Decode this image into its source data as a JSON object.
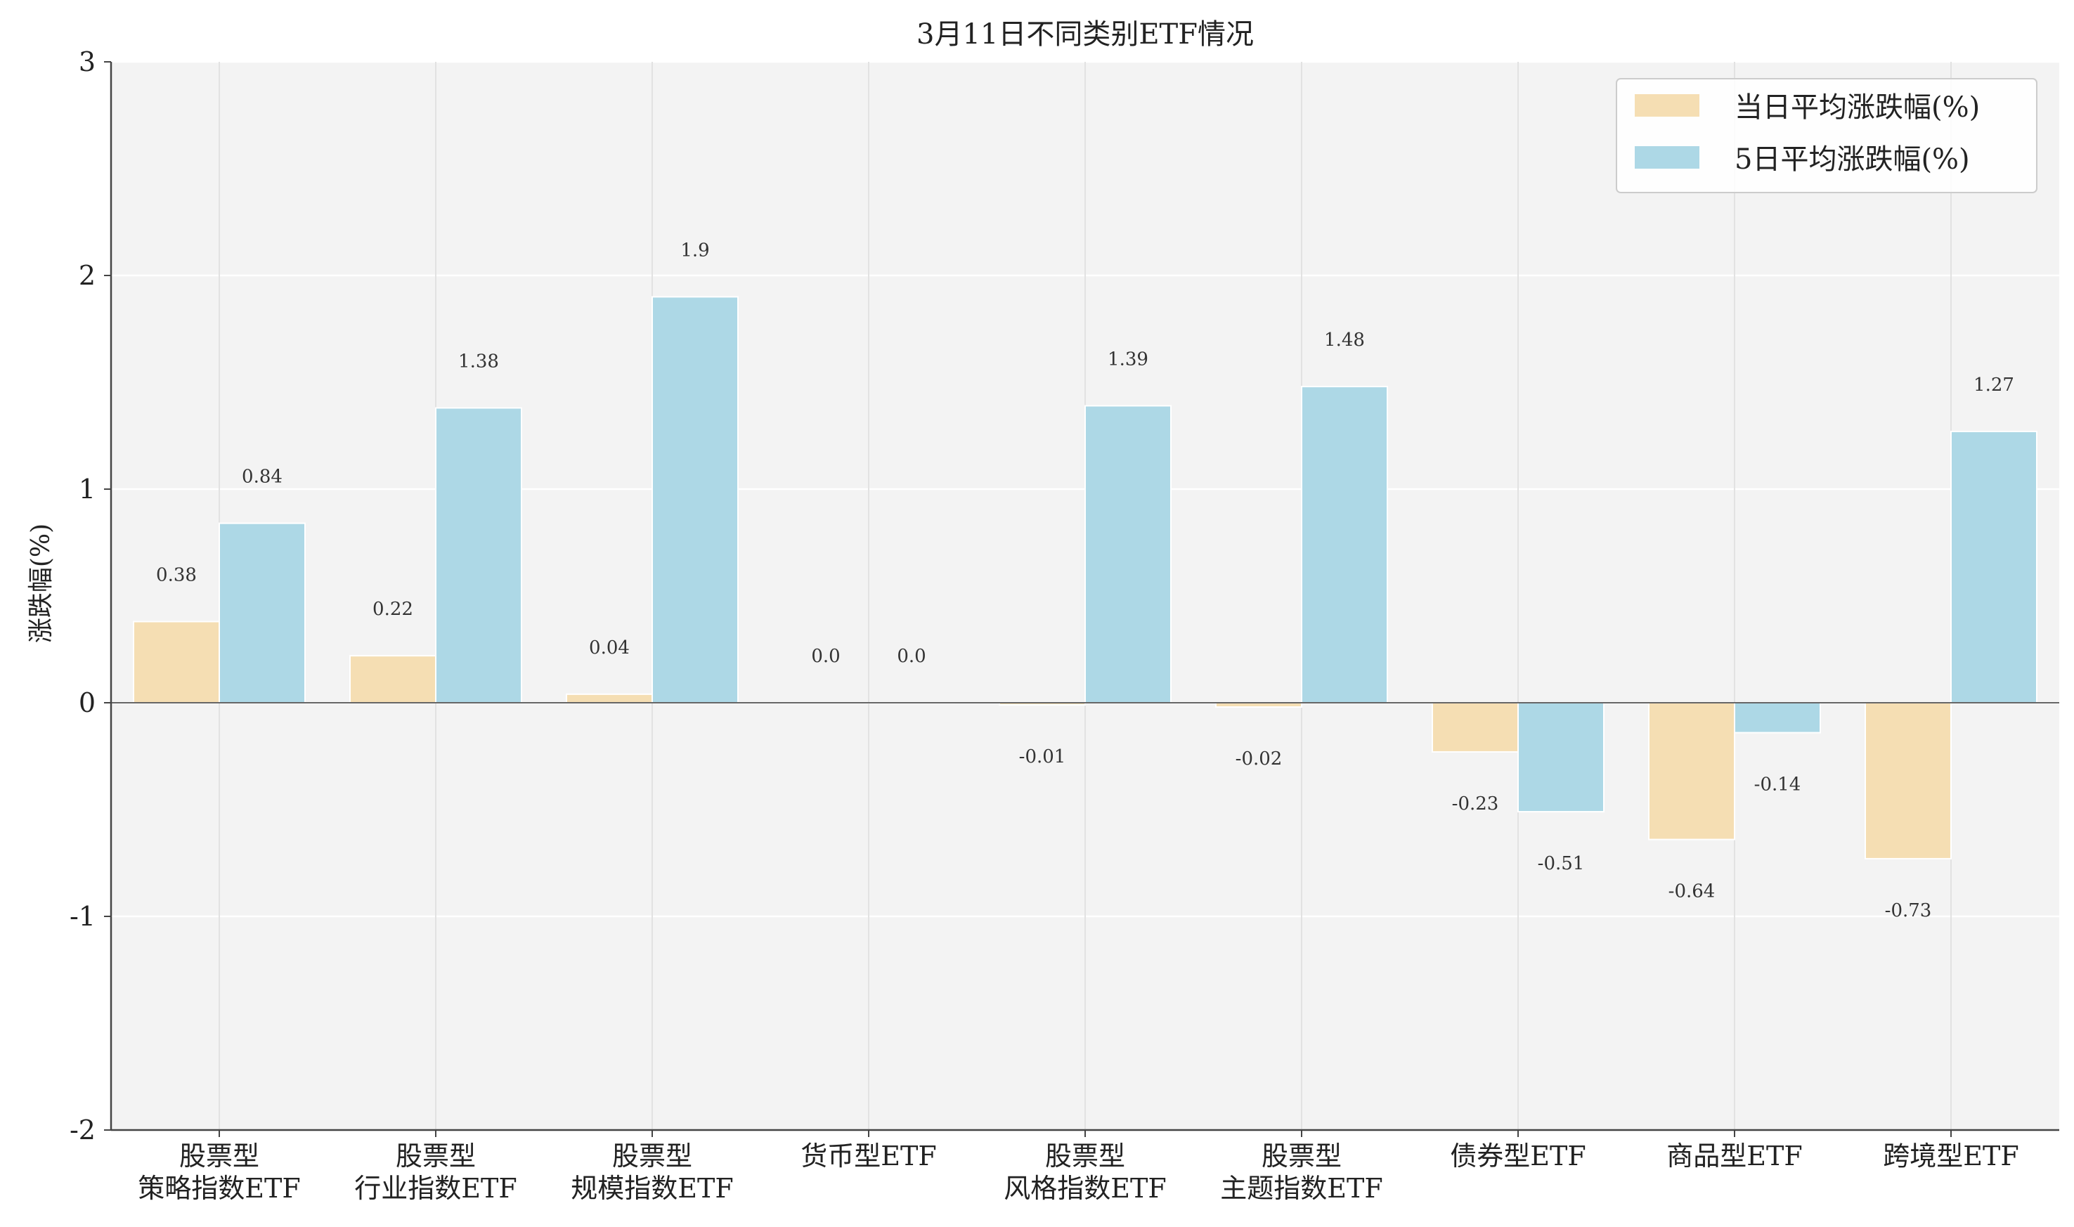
{
  "chart_data": {
    "type": "bar",
    "title": "3月11日不同类别ETF情况",
    "xlabel": "",
    "ylabel": "涨跌幅(%)",
    "ylim": [
      -2,
      3
    ],
    "yticks": [
      "3",
      "2",
      "1",
      "0",
      "-1",
      "-2"
    ],
    "grid": true,
    "legend_position": "top-right",
    "categories": [
      [
        "股票型",
        "策略指数ETF"
      ],
      [
        "股票型",
        "行业指数ETF"
      ],
      [
        "股票型",
        "规模指数ETF"
      ],
      [
        "货币型ETF"
      ],
      [
        "股票型",
        "风格指数ETF"
      ],
      [
        "股票型",
        "主题指数ETF"
      ],
      [
        "债券型ETF"
      ],
      [
        "商品型ETF"
      ],
      [
        "跨境型ETF"
      ]
    ],
    "series": [
      {
        "name": "当日平均涨跌幅(%)",
        "color": "#f5deb3",
        "values": [
          0.38,
          0.22,
          0.04,
          0.0,
          -0.01,
          -0.02,
          -0.23,
          -0.64,
          -0.73
        ],
        "labels": [
          "0.38",
          "0.22",
          "0.04",
          "0.0",
          "-0.01",
          "-0.02",
          "-0.23",
          "-0.64",
          "-0.73"
        ]
      },
      {
        "name": "5日平均涨跌幅(%)",
        "color": "#add8e6",
        "values": [
          0.84,
          1.38,
          1.9,
          0.0,
          1.39,
          1.48,
          -0.51,
          -0.14,
          1.27
        ],
        "labels": [
          "0.84",
          "1.38",
          "1.9",
          "0.0",
          "1.39",
          "1.48",
          "-0.51",
          "-0.14",
          "1.27"
        ]
      }
    ]
  }
}
